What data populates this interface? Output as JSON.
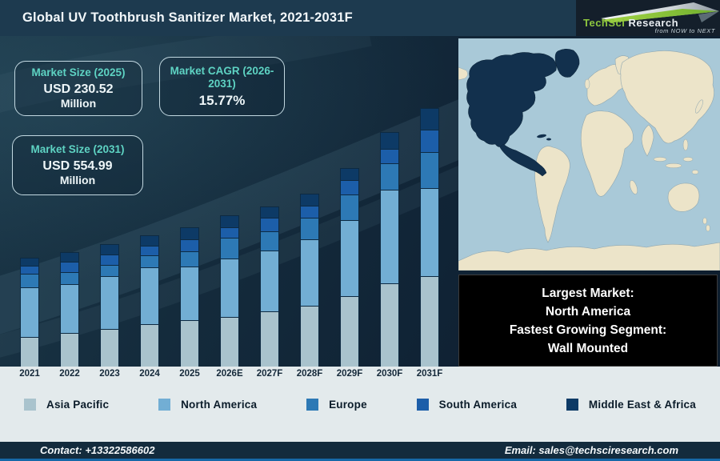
{
  "header": {
    "title": "Global UV Toothbrush Sanitizer Market, 2021-2031F",
    "logo": {
      "brand_primary": "TechSci",
      "brand_secondary": "Research",
      "tagline": "from NOW to NEXT",
      "brand_green": "#8dc63f"
    }
  },
  "stats": [
    {
      "label": "Market Size (2025)",
      "value": "USD 230.52",
      "unit": "Million"
    },
    {
      "label": "Market CAGR (2026-2031)",
      "value": "15.77%",
      "unit": ""
    },
    {
      "label": "Market Size (2031)",
      "value": "USD 554.99",
      "unit": "Million"
    }
  ],
  "chart_data": {
    "type": "bar",
    "stacked": true,
    "title": "",
    "xlabel": "",
    "ylabel": "",
    "grid": false,
    "legend_position": "bottom",
    "value_axis_shown": false,
    "unit": "relative visual height in px (bars carry no printed values)",
    "categories": [
      "2021",
      "2022",
      "2023",
      "2024",
      "2025",
      "2026E",
      "2027F",
      "2028F",
      "2029F",
      "2030F",
      "2031F"
    ],
    "series": [
      {
        "name": "Asia Pacific",
        "color": "#a9c3cd",
        "values": [
          37,
          42,
          47,
          53,
          58,
          62,
          69,
          76,
          88,
          104,
          113
        ]
      },
      {
        "name": "North America",
        "color": "#72aed4",
        "values": [
          62,
          61,
          66,
          71,
          67,
          73,
          76,
          83,
          95,
          117,
          110
        ]
      },
      {
        "name": "Europe",
        "color": "#2d79b5",
        "values": [
          17,
          15,
          14,
          15,
          19,
          26,
          24,
          27,
          32,
          33,
          45
        ]
      },
      {
        "name": "South America",
        "color": "#1c5ea9",
        "values": [
          10,
          13,
          13,
          12,
          15,
          13,
          17,
          15,
          18,
          18,
          28
        ]
      },
      {
        "name": "Middle East & Africa",
        "color": "#0d3a66",
        "values": [
          10,
          12,
          13,
          13,
          15,
          15,
          14,
          15,
          15,
          21,
          27
        ]
      }
    ]
  },
  "info_box": {
    "lines": [
      "Largest Market:",
      "North America",
      "Fastest Growing Segment:",
      "Wall Mounted"
    ]
  },
  "map": {
    "colors": {
      "ocean": "#a9c9d8",
      "land": "#ece4c9",
      "highlight": "#12304d"
    },
    "highlighted_region": "North America"
  },
  "footer": {
    "contact": "Contact: +13322586602",
    "email": "Email: sales@techsciresearch.com"
  },
  "colors": {
    "header_bg": "#1d3a4f",
    "main_bg": "#12273a",
    "accent_teal": "#5ed3c3",
    "band_bg": "#e3eaec",
    "footer_bg": "#132b3d",
    "footer_line": "#1668a8",
    "info_box_bg": "#000000"
  }
}
